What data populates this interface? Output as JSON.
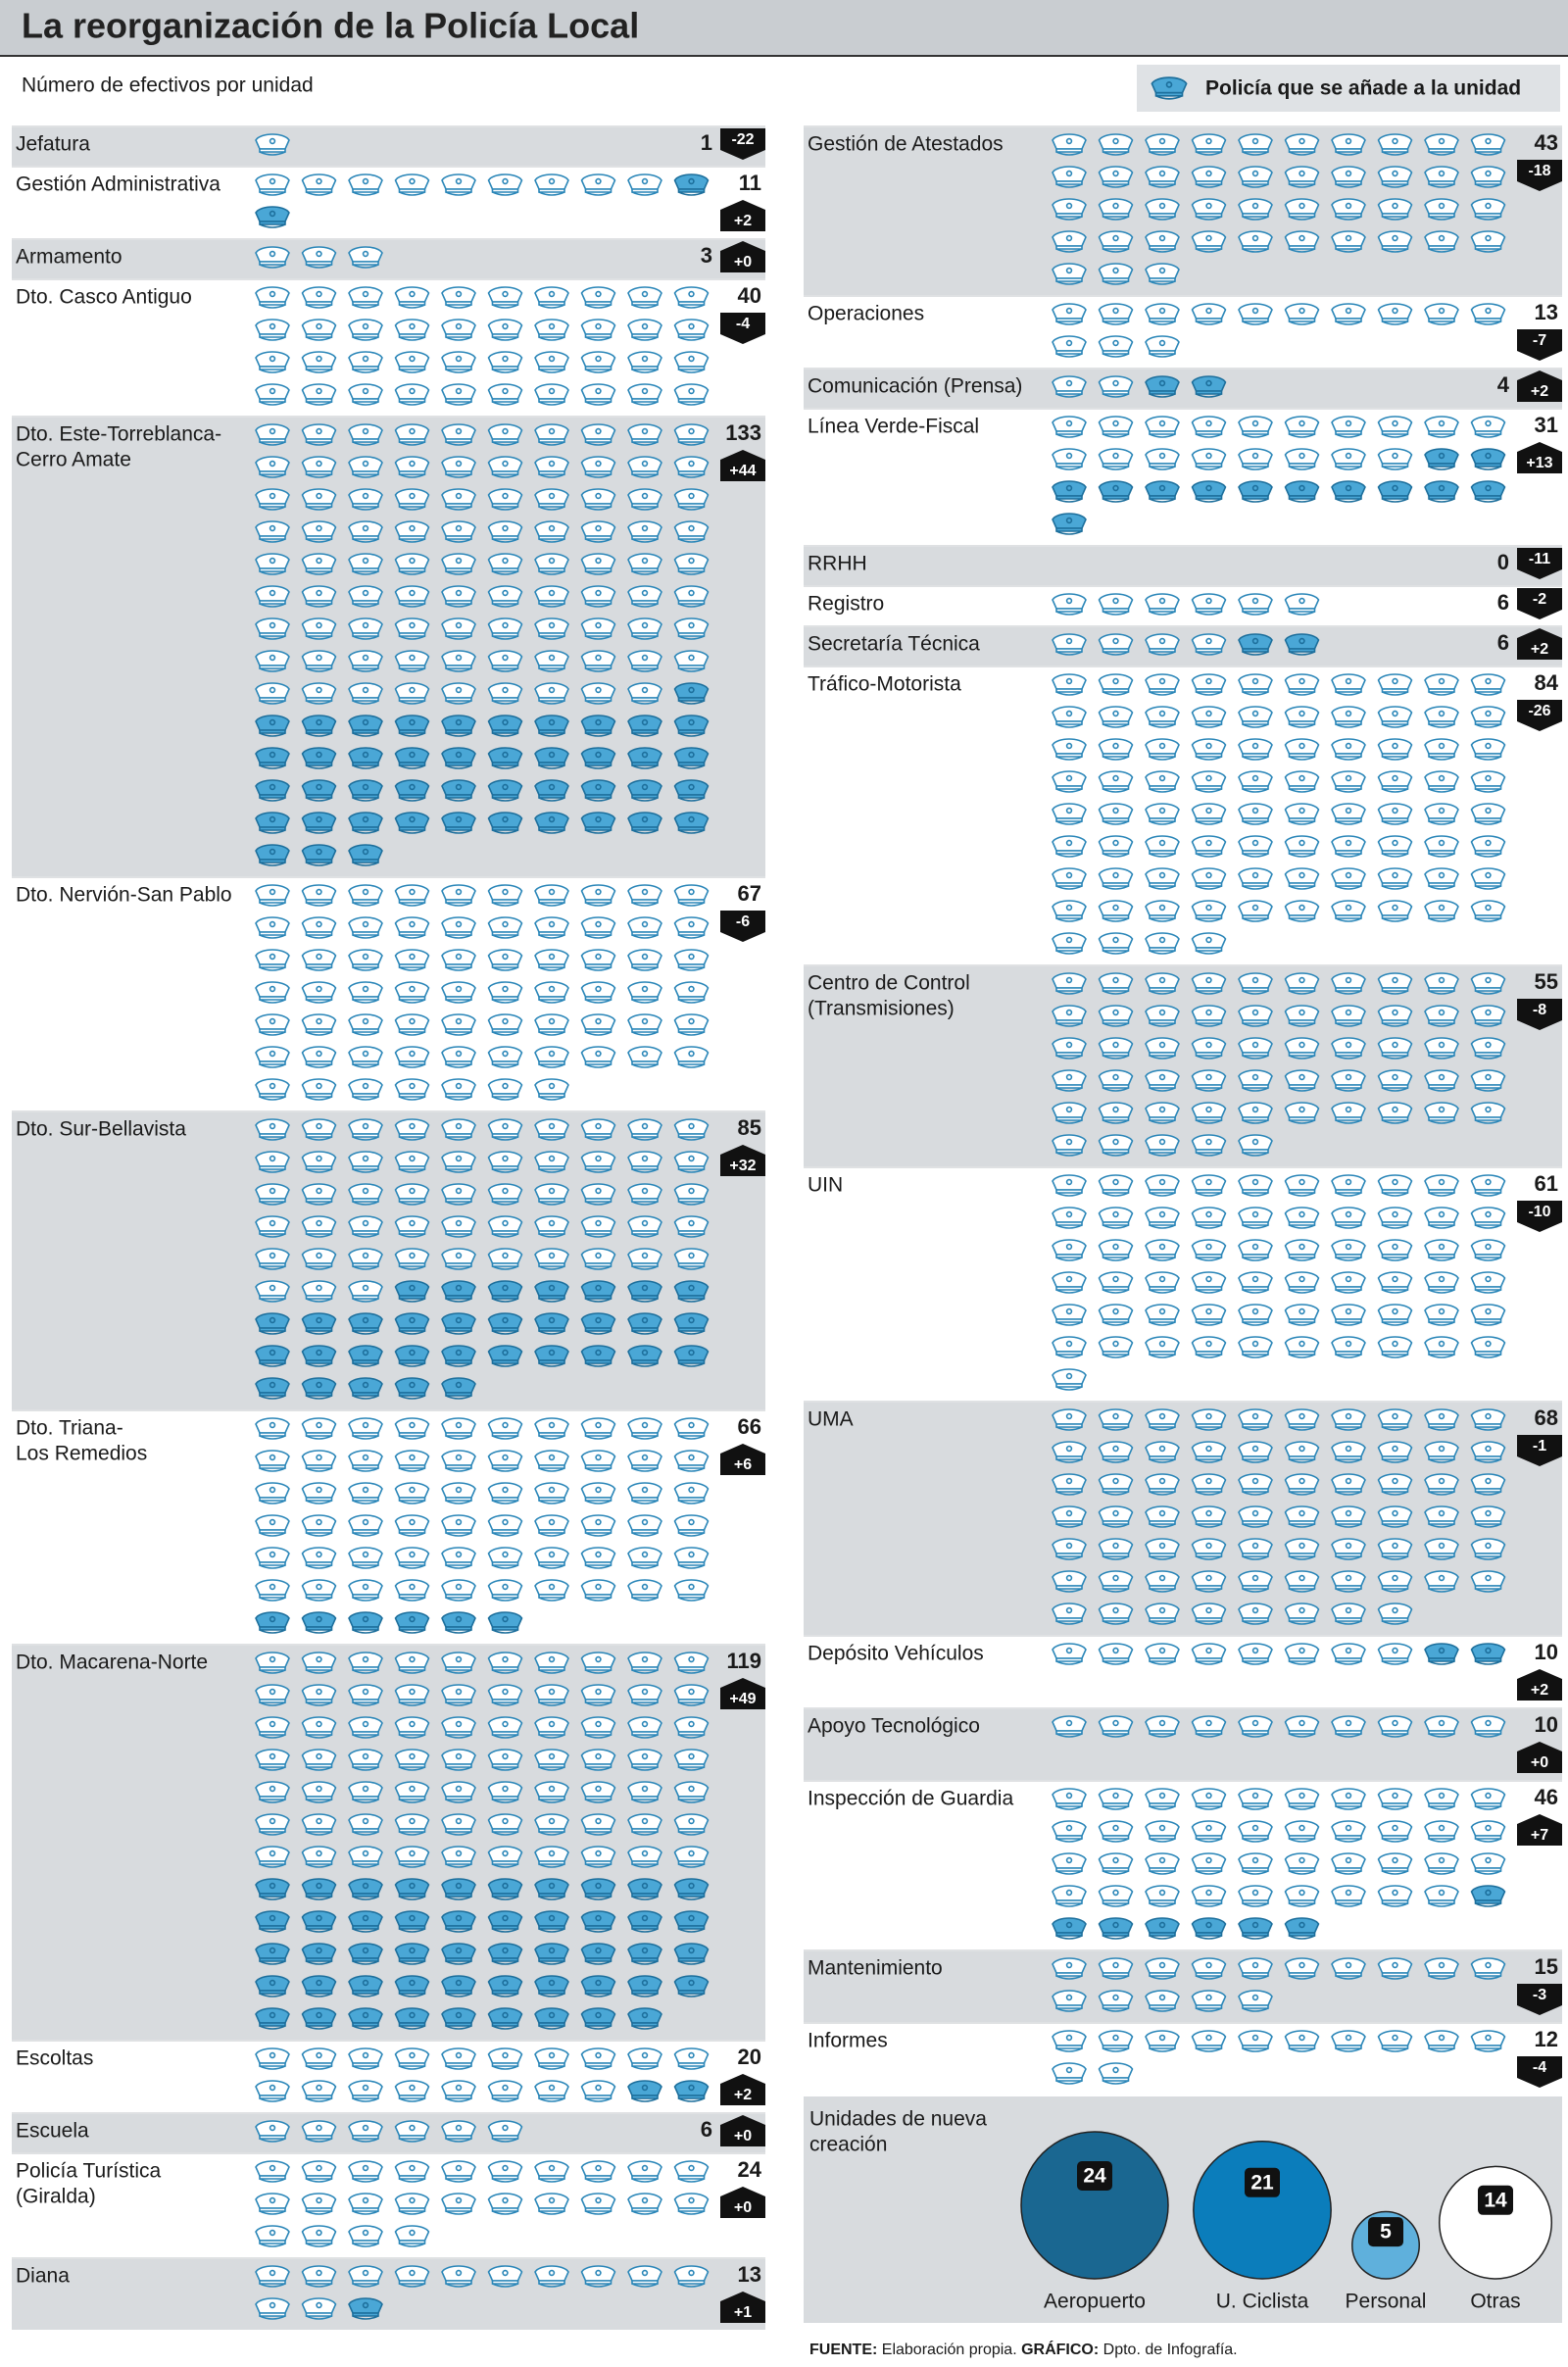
{
  "title": "La reorganización de la Policía Local",
  "subtitle": "Número de efectivos por unidad",
  "legend": "Policía que se añade a la unidad",
  "left_units": [
    {
      "name": [
        "Jefatura"
      ],
      "total": 1,
      "change": -22,
      "change_label": "-22"
    },
    {
      "name": [
        "Gestión Administrativa"
      ],
      "total": 11,
      "change": 2,
      "change_label": "+2"
    },
    {
      "name": [
        "Armamento"
      ],
      "total": 3,
      "change": 0,
      "change_label": "+0"
    },
    {
      "name": [
        "Dto. Casco Antiguo"
      ],
      "total": 40,
      "change": -4,
      "change_label": "-4"
    },
    {
      "name": [
        "Dto. Este-Torreblanca-",
        "Cerro Amate"
      ],
      "total": 133,
      "change": 44,
      "change_label": "+44"
    },
    {
      "name": [
        "Dto. Nervión-San Pablo"
      ],
      "total": 67,
      "change": -6,
      "change_label": "-6"
    },
    {
      "name": [
        "Dto. Sur-Bellavista"
      ],
      "total": 85,
      "change": 32,
      "change_label": "+32"
    },
    {
      "name": [
        "Dto. Triana-",
        "Los Remedios"
      ],
      "total": 66,
      "change": 6,
      "change_label": "+6"
    },
    {
      "name": [
        "Dto. Macarena-Norte"
      ],
      "total": 119,
      "change": 49,
      "change_label": "+49"
    },
    {
      "name": [
        "Escoltas"
      ],
      "total": 20,
      "change": 2,
      "change_label": "+2"
    },
    {
      "name": [
        "Escuela"
      ],
      "total": 6,
      "change": 0,
      "change_label": "+0"
    },
    {
      "name": [
        "Policía Turística",
        "(Giralda)"
      ],
      "total": 24,
      "change": 0,
      "change_label": "+0"
    },
    {
      "name": [
        "Diana"
      ],
      "total": 13,
      "change": 1,
      "change_label": "+1"
    }
  ],
  "right_units": [
    {
      "name": [
        "Gestión de Atestados"
      ],
      "total": 43,
      "change": -18,
      "change_label": "-18"
    },
    {
      "name": [
        "Operaciones"
      ],
      "total": 13,
      "change": -7,
      "change_label": "-7"
    },
    {
      "name": [
        "Comunicación (Prensa)"
      ],
      "total": 4,
      "change": 2,
      "change_label": "+2"
    },
    {
      "name": [
        "Línea Verde-Fiscal"
      ],
      "total": 31,
      "change": 13,
      "change_label": "+13"
    },
    {
      "name": [
        "RRHH"
      ],
      "total": 0,
      "change": -11,
      "change_label": "-11"
    },
    {
      "name": [
        "Registro"
      ],
      "total": 6,
      "change": -2,
      "change_label": "-2"
    },
    {
      "name": [
        "Secretaría Técnica"
      ],
      "total": 6,
      "change": 2,
      "change_label": "+2"
    },
    {
      "name": [
        "Tráfico-Motorista"
      ],
      "total": 84,
      "change": -26,
      "change_label": "-26"
    },
    {
      "name": [
        "Centro de Control",
        "(Transmisiones)"
      ],
      "total": 55,
      "change": -8,
      "change_label": "-8"
    },
    {
      "name": [
        "UIN"
      ],
      "total": 61,
      "change": -10,
      "change_label": "-10"
    },
    {
      "name": [
        "UMA"
      ],
      "total": 68,
      "change": -1,
      "change_label": "-1"
    },
    {
      "name": [
        "Depósito Vehículos"
      ],
      "total": 10,
      "change": 2,
      "change_label": "+2"
    },
    {
      "name": [
        "Apoyo Tecnológico"
      ],
      "total": 10,
      "change": 0,
      "change_label": "+0"
    },
    {
      "name": [
        "Inspección de Guardia"
      ],
      "total": 46,
      "change": 7,
      "change_label": "+7"
    },
    {
      "name": [
        "Mantenimiento"
      ],
      "total": 15,
      "change": -3,
      "change_label": "-3"
    },
    {
      "name": [
        "Informes"
      ],
      "total": 12,
      "change": -4,
      "change_label": "-4"
    }
  ],
  "new_units": {
    "title": [
      "Unidades de nueva",
      "creación"
    ],
    "items": [
      {
        "name": "Aeropuerto",
        "value": 24,
        "color": "#1a6791"
      },
      {
        "name": "U. Ciclista",
        "value": 21,
        "color": "#0b7dbb"
      },
      {
        "name": "Personal",
        "value": 5,
        "color": "#5fb0dc"
      },
      {
        "name": "Otras",
        "value": 14,
        "color": "#ffffff"
      }
    ]
  },
  "footer": {
    "source_label": "FUENTE:",
    "source": " Elaboración propia. ",
    "credit_label": "GRÁFICO:",
    "credit": " Dpto. de Infografía."
  }
}
